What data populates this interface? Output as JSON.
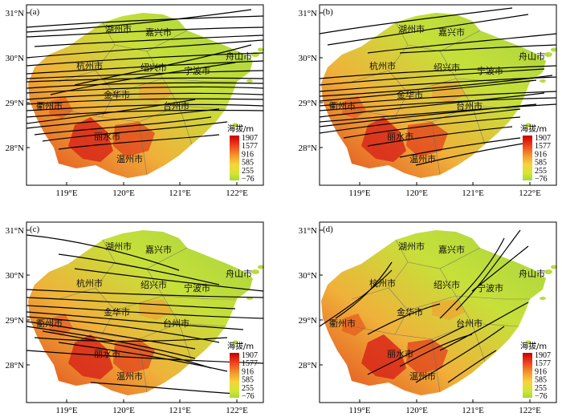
{
  "panels": [
    {
      "label": "(a)",
      "track_count": "many"
    },
    {
      "label": "(b)",
      "track_count": "many"
    },
    {
      "label": "(c)",
      "track_count": "medium"
    },
    {
      "label": "(d)",
      "track_count": "few"
    }
  ],
  "axes": {
    "lat_ticks": [
      "31°N",
      "30°N",
      "29°N",
      "28°N"
    ],
    "lon_ticks": [
      "119°E",
      "120°E",
      "121°E",
      "122°E"
    ]
  },
  "cities": [
    "湖州市",
    "嘉兴市",
    "舟山市",
    "杭州市",
    "绍兴市",
    "宁波市",
    "金华市",
    "衢州市",
    "台州市",
    "丽水市",
    "温州市"
  ],
  "legend": {
    "title": "海拔/m",
    "levels": [
      "1907",
      "1577",
      "916",
      "585",
      "255",
      "−76"
    ],
    "colors": [
      "#c80000",
      "#ee3a1c",
      "#f39a2d",
      "#f6d43a",
      "#d2e636",
      "#a7d63a"
    ]
  },
  "colors": {
    "land_low": "#b8dc3c",
    "land_high": "#e2281c",
    "track": "#000000",
    "sea": "#ffffff"
  }
}
